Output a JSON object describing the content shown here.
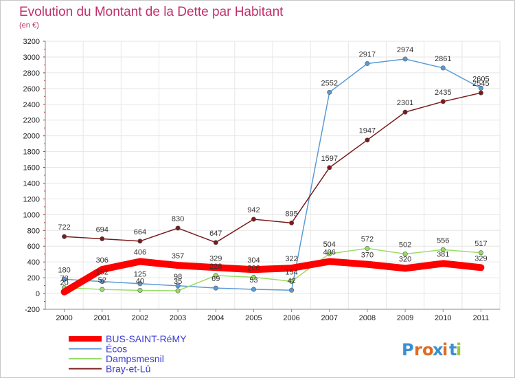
{
  "chart_data": {
    "type": "line",
    "title": "Evolution du Montant de la Dette par Habitant",
    "subtitle": "(en €)",
    "xlabel": "",
    "ylabel": "",
    "x": [
      "2000",
      "2001",
      "2002",
      "2003",
      "2004",
      "2005",
      "2006",
      "2007",
      "2008",
      "2009",
      "2010",
      "2011"
    ],
    "ylim": [
      -200,
      3200
    ],
    "yticks": [
      -200,
      0,
      200,
      400,
      600,
      800,
      1000,
      1200,
      1400,
      1600,
      1800,
      2000,
      2200,
      2400,
      2600,
      2800,
      3000,
      3200
    ],
    "grid": true,
    "legend_position": "bottom-left",
    "series": [
      {
        "name": "BUS-SAINT-RéMY",
        "color": "#ff0000",
        "values": [
          20,
          306,
          406,
          357,
          329,
          304,
          322,
          406,
          370,
          320,
          381,
          329
        ]
      },
      {
        "name": "Écos",
        "color": "#5b9bd5",
        "values": [
          180,
          152,
          125,
          98,
          69,
          53,
          42,
          2552,
          2917,
          2974,
          2861,
          2605
        ]
      },
      {
        "name": "Dampsmesnil",
        "color": "#99dd66",
        "values": [
          73,
          52,
          40,
          35,
          228,
          206,
          154,
          504,
          572,
          502,
          556,
          517
        ]
      },
      {
        "name": "Bray-et-Lû",
        "color": "#7a1a1a",
        "values": [
          722,
          694,
          664,
          830,
          647,
          942,
          895,
          1597,
          1947,
          2301,
          2435,
          2545
        ]
      }
    ]
  },
  "logo": {
    "text": "Proxiti"
  }
}
